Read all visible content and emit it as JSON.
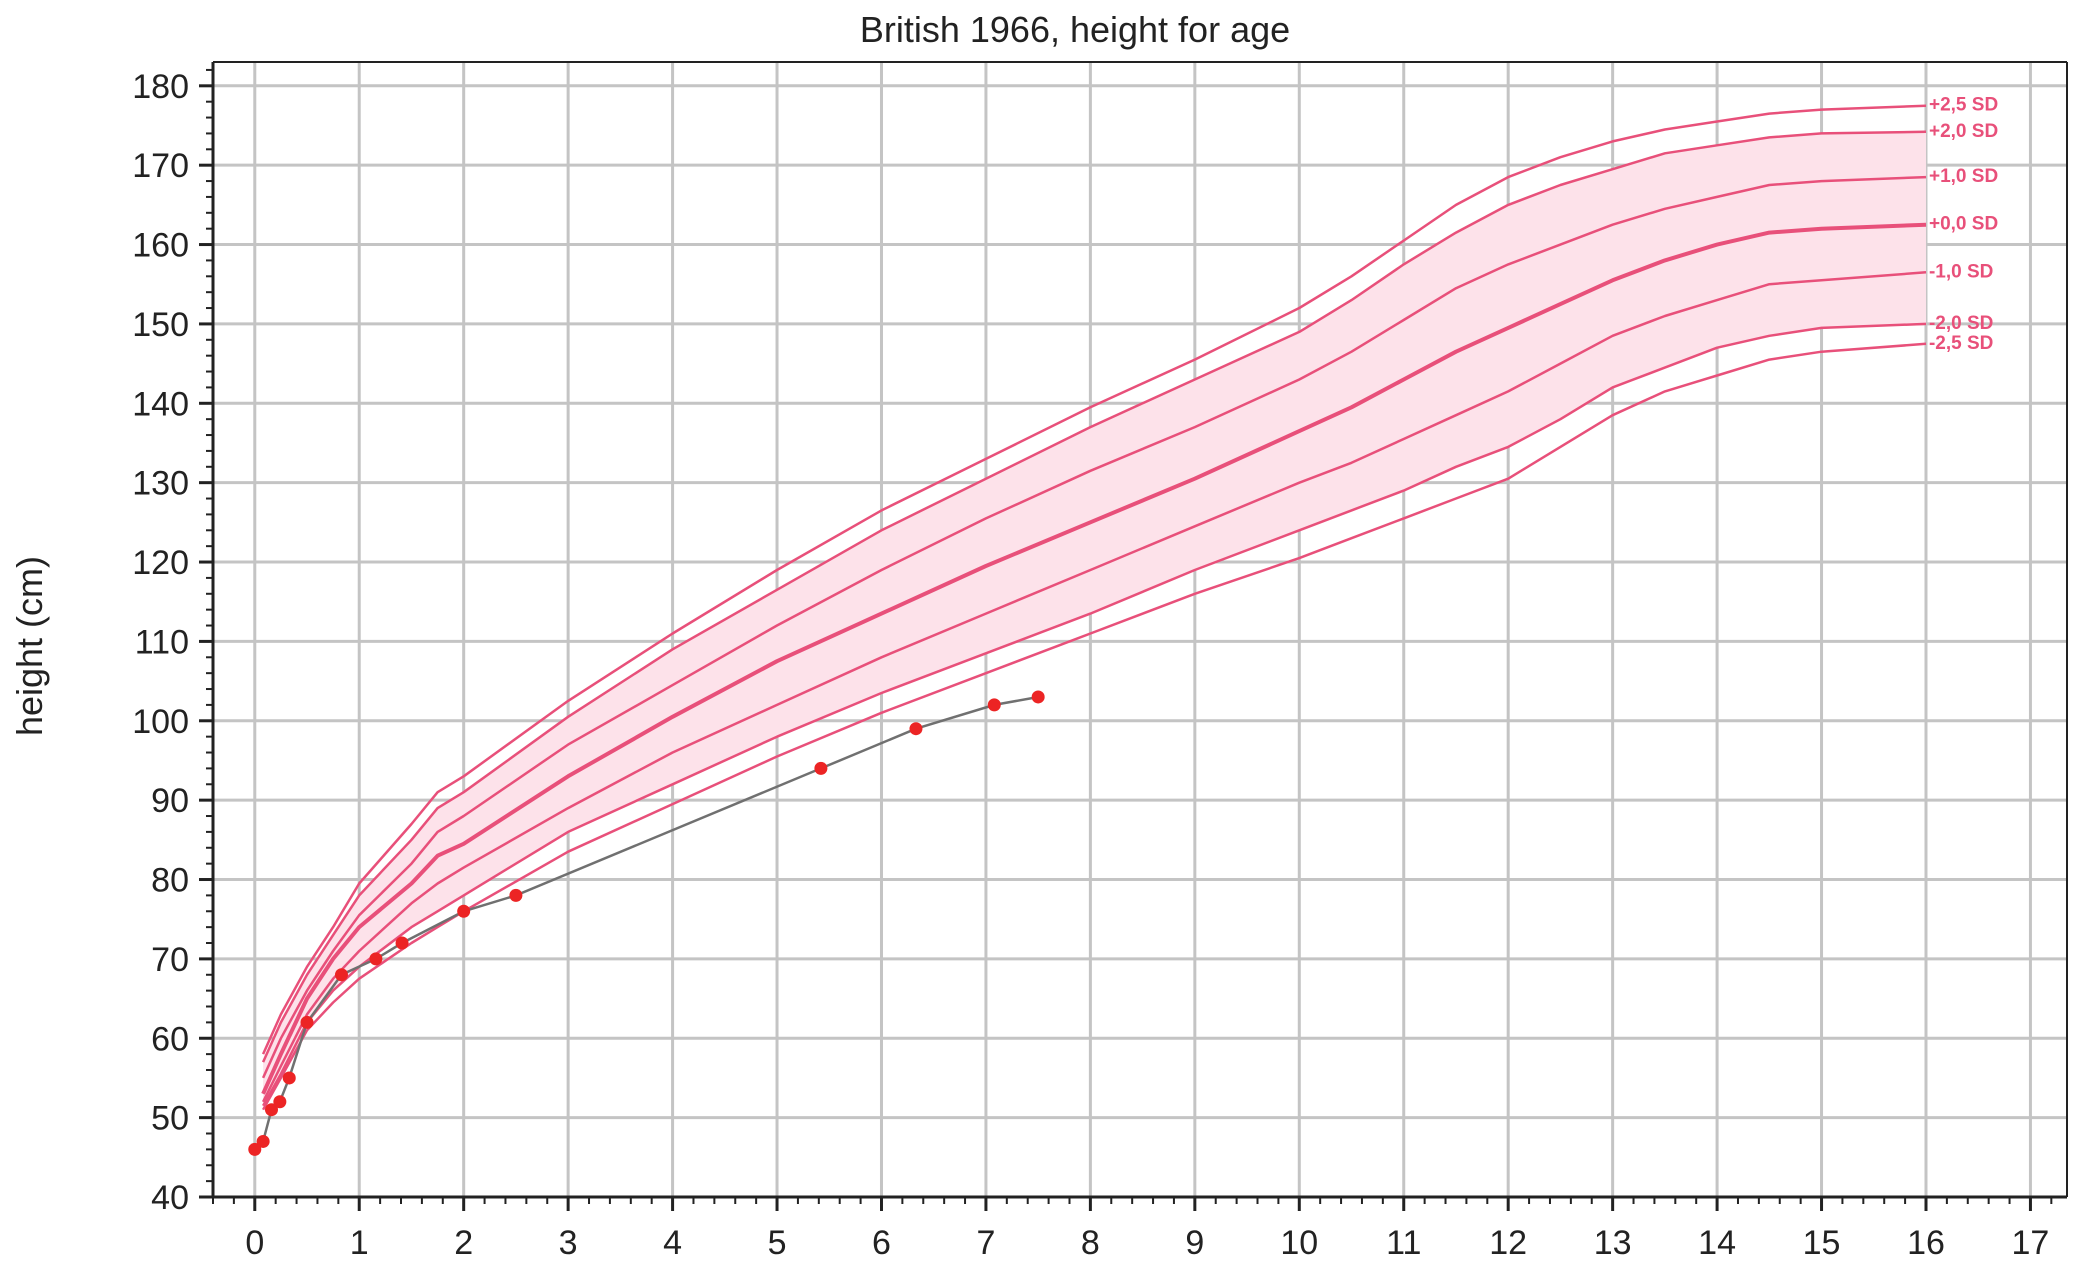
{
  "chart_data": {
    "type": "line",
    "title": "British 1966, height for age",
    "xlabel": "",
    "ylabel": "height (cm)",
    "xlim": [
      -0.4,
      17.35
    ],
    "ylim": [
      40,
      183
    ],
    "x_ticks": [
      0,
      1,
      2,
      3,
      4,
      5,
      6,
      7,
      8,
      9,
      10,
      11,
      12,
      13,
      14,
      15,
      16,
      17
    ],
    "y_ticks": [
      40,
      50,
      60,
      70,
      80,
      90,
      100,
      110,
      120,
      130,
      140,
      150,
      160,
      170,
      180
    ],
    "grid": true,
    "reference_color": "#e8507a",
    "band_color": "#fde2ea",
    "reference_curves": [
      {
        "name": "+2,5 SD",
        "points": [
          [
            0.08,
            58
          ],
          [
            0.25,
            63
          ],
          [
            0.5,
            69
          ],
          [
            0.75,
            74
          ],
          [
            1,
            79.5
          ],
          [
            1.5,
            87
          ],
          [
            1.75,
            91
          ],
          [
            2,
            93
          ],
          [
            3,
            102.5
          ],
          [
            4,
            111
          ],
          [
            5,
            119
          ],
          [
            6,
            126.5
          ],
          [
            7,
            133
          ],
          [
            8,
            139.5
          ],
          [
            9,
            145.5
          ],
          [
            10,
            152
          ],
          [
            10.5,
            156
          ],
          [
            11,
            160.5
          ],
          [
            11.5,
            165
          ],
          [
            12,
            168.5
          ],
          [
            12.5,
            171
          ],
          [
            13,
            173
          ],
          [
            13.5,
            174.5
          ],
          [
            14,
            175.5
          ],
          [
            14.5,
            176.5
          ],
          [
            15,
            177
          ],
          [
            16,
            177.5
          ]
        ]
      },
      {
        "name": "+2,0 SD",
        "points": [
          [
            0.08,
            57
          ],
          [
            0.25,
            62
          ],
          [
            0.5,
            68
          ],
          [
            0.75,
            73
          ],
          [
            1,
            78
          ],
          [
            1.5,
            85
          ],
          [
            1.75,
            89
          ],
          [
            2,
            91
          ],
          [
            3,
            100.5
          ],
          [
            4,
            109
          ],
          [
            5,
            116.5
          ],
          [
            6,
            124
          ],
          [
            7,
            130.5
          ],
          [
            8,
            137
          ],
          [
            9,
            143
          ],
          [
            10,
            149
          ],
          [
            10.5,
            153
          ],
          [
            11,
            157.5
          ],
          [
            11.5,
            161.5
          ],
          [
            12,
            165
          ],
          [
            12.5,
            167.5
          ],
          [
            13,
            169.5
          ],
          [
            13.5,
            171.5
          ],
          [
            14,
            172.5
          ],
          [
            14.5,
            173.5
          ],
          [
            15,
            174
          ],
          [
            16,
            174.2
          ]
        ]
      },
      {
        "name": "+1,0 SD",
        "points": [
          [
            0.08,
            55
          ],
          [
            0.25,
            60
          ],
          [
            0.5,
            66
          ],
          [
            0.75,
            71
          ],
          [
            1,
            75.5
          ],
          [
            1.5,
            82
          ],
          [
            1.75,
            86
          ],
          [
            2,
            88
          ],
          [
            3,
            97
          ],
          [
            4,
            104.5
          ],
          [
            5,
            112
          ],
          [
            6,
            119
          ],
          [
            7,
            125.5
          ],
          [
            8,
            131.5
          ],
          [
            9,
            137
          ],
          [
            10,
            143
          ],
          [
            10.5,
            146.5
          ],
          [
            11,
            150.5
          ],
          [
            11.5,
            154.5
          ],
          [
            12,
            157.5
          ],
          [
            12.5,
            160
          ],
          [
            13,
            162.5
          ],
          [
            13.5,
            164.5
          ],
          [
            14,
            166
          ],
          [
            14.5,
            167.5
          ],
          [
            15,
            168
          ],
          [
            16,
            168.5
          ]
        ]
      },
      {
        "name": "+0,0 SD",
        "points": [
          [
            0.08,
            53
          ],
          [
            0.25,
            58
          ],
          [
            0.5,
            65
          ],
          [
            0.75,
            70
          ],
          [
            1,
            74
          ],
          [
            1.5,
            79.5
          ],
          [
            1.75,
            83
          ],
          [
            2,
            84.5
          ],
          [
            3,
            93
          ],
          [
            4,
            100.5
          ],
          [
            5,
            107.5
          ],
          [
            6,
            113.5
          ],
          [
            7,
            119.5
          ],
          [
            8,
            125
          ],
          [
            9,
            130.5
          ],
          [
            10,
            136.5
          ],
          [
            10.5,
            139.5
          ],
          [
            11,
            143
          ],
          [
            11.5,
            146.5
          ],
          [
            12,
            149.5
          ],
          [
            12.5,
            152.5
          ],
          [
            13,
            155.5
          ],
          [
            13.5,
            158
          ],
          [
            14,
            160
          ],
          [
            14.5,
            161.5
          ],
          [
            15,
            162
          ],
          [
            16,
            162.5
          ]
        ]
      },
      {
        "name": "-1,0 SD",
        "points": [
          [
            0.08,
            52
          ],
          [
            0.25,
            56.5
          ],
          [
            0.5,
            63
          ],
          [
            0.75,
            67.5
          ],
          [
            1,
            71
          ],
          [
            1.5,
            77
          ],
          [
            1.75,
            79.5
          ],
          [
            2,
            81.5
          ],
          [
            3,
            89
          ],
          [
            4,
            96
          ],
          [
            5,
            102
          ],
          [
            6,
            108
          ],
          [
            7,
            113.5
          ],
          [
            8,
            119
          ],
          [
            9,
            124.5
          ],
          [
            10,
            130
          ],
          [
            10.5,
            132.5
          ],
          [
            11,
            135.5
          ],
          [
            11.5,
            138.5
          ],
          [
            12,
            141.5
          ],
          [
            12.5,
            145
          ],
          [
            13,
            148.5
          ],
          [
            13.5,
            151
          ],
          [
            14,
            153
          ],
          [
            14.5,
            155
          ],
          [
            15,
            155.5
          ],
          [
            16,
            156.5
          ]
        ]
      },
      {
        "name": "-2,0 SD",
        "points": [
          [
            0.08,
            51.5
          ],
          [
            0.25,
            55.5
          ],
          [
            0.5,
            62
          ],
          [
            0.75,
            66
          ],
          [
            1,
            69
          ],
          [
            1.5,
            74
          ],
          [
            1.75,
            76
          ],
          [
            2,
            78
          ],
          [
            3,
            86
          ],
          [
            4,
            92
          ],
          [
            5,
            98
          ],
          [
            6,
            103.5
          ],
          [
            7,
            108.5
          ],
          [
            8,
            113.5
          ],
          [
            9,
            119
          ],
          [
            10,
            124
          ],
          [
            10.5,
            126.5
          ],
          [
            11,
            129
          ],
          [
            11.5,
            132
          ],
          [
            12,
            134.5
          ],
          [
            12.5,
            138
          ],
          [
            13,
            142
          ],
          [
            13.5,
            144.5
          ],
          [
            14,
            147
          ],
          [
            14.5,
            148.5
          ],
          [
            15,
            149.5
          ],
          [
            16,
            150
          ]
        ]
      },
      {
        "name": "-2,5 SD",
        "points": [
          [
            0.08,
            51
          ],
          [
            0.25,
            55
          ],
          [
            0.5,
            61
          ],
          [
            0.75,
            64.5
          ],
          [
            1,
            67.5
          ],
          [
            1.5,
            72
          ],
          [
            1.75,
            74
          ],
          [
            2,
            76
          ],
          [
            3,
            83.5
          ],
          [
            4,
            89.5
          ],
          [
            5,
            95.5
          ],
          [
            6,
            101
          ],
          [
            7,
            106
          ],
          [
            8,
            111
          ],
          [
            9,
            116
          ],
          [
            10,
            120.5
          ],
          [
            10.5,
            123
          ],
          [
            11,
            125.5
          ],
          [
            11.5,
            128
          ],
          [
            12,
            130.5
          ],
          [
            12.5,
            134.5
          ],
          [
            13,
            138.5
          ],
          [
            13.5,
            141.5
          ],
          [
            14,
            143.5
          ],
          [
            14.5,
            145.5
          ],
          [
            15,
            146.5
          ],
          [
            16,
            147.5
          ]
        ]
      }
    ],
    "series": [
      {
        "color": "#707070",
        "marker_color": "#ec2424",
        "points": [
          [
            0,
            46
          ],
          [
            0.08,
            47
          ],
          [
            0.16,
            51
          ],
          [
            0.24,
            52
          ],
          [
            0.33,
            55
          ],
          [
            0.5,
            62
          ],
          [
            0.83,
            68
          ],
          [
            1.16,
            70
          ],
          [
            1.41,
            72
          ],
          [
            2,
            76
          ],
          [
            2.5,
            78
          ],
          [
            5.42,
            94
          ],
          [
            6.33,
            99
          ],
          [
            7.08,
            102
          ],
          [
            7.5,
            103
          ]
        ]
      }
    ]
  }
}
